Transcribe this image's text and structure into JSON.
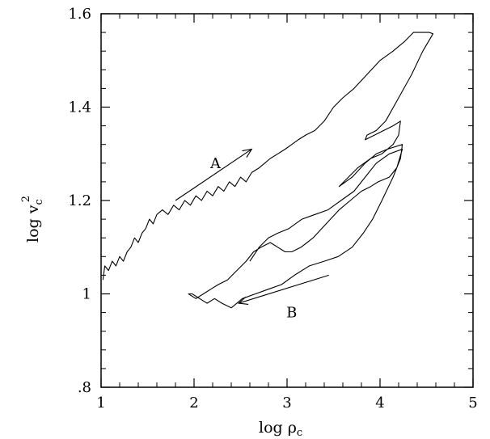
{
  "chart_data": {
    "type": "line",
    "title": "",
    "xlabel": "log ρ",
    "xlabel_sub": "c",
    "ylabel": "log v",
    "ylabel_sub": "c",
    "ylabel_sup": "2",
    "xlim": [
      1,
      5
    ],
    "ylim": [
      0.8,
      1.6
    ],
    "x_ticks": [
      1,
      2,
      3,
      4,
      5
    ],
    "x_tick_labels": [
      "1",
      "2",
      "3",
      "4",
      "5"
    ],
    "y_ticks": [
      0.8,
      1.0,
      1.2,
      1.4,
      1.6
    ],
    "y_tick_labels": [
      ".8",
      "1",
      "1.2",
      "1.4",
      "1.6"
    ],
    "x_minor_step": 0.2,
    "y_minor_step": 0.04,
    "grid": false,
    "line_color": "#000000",
    "series": [
      {
        "values": [
          [
            1.02,
            1.03
          ],
          [
            1.04,
            1.06
          ],
          [
            1.08,
            1.05
          ],
          [
            1.12,
            1.07
          ],
          [
            1.16,
            1.06
          ],
          [
            1.2,
            1.08
          ],
          [
            1.24,
            1.07
          ],
          [
            1.28,
            1.09
          ],
          [
            1.32,
            1.1
          ],
          [
            1.36,
            1.12
          ],
          [
            1.4,
            1.11
          ],
          [
            1.44,
            1.13
          ],
          [
            1.48,
            1.14
          ],
          [
            1.52,
            1.16
          ],
          [
            1.56,
            1.15
          ],
          [
            1.6,
            1.17
          ],
          [
            1.66,
            1.18
          ],
          [
            1.72,
            1.17
          ],
          [
            1.78,
            1.19
          ],
          [
            1.84,
            1.18
          ],
          [
            1.9,
            1.2
          ],
          [
            1.96,
            1.19
          ],
          [
            2.02,
            1.21
          ],
          [
            2.08,
            1.2
          ],
          [
            2.14,
            1.22
          ],
          [
            2.2,
            1.21
          ],
          [
            2.26,
            1.23
          ],
          [
            2.32,
            1.22
          ],
          [
            2.38,
            1.24
          ],
          [
            2.44,
            1.23
          ],
          [
            2.5,
            1.25
          ],
          [
            2.56,
            1.24
          ],
          [
            2.62,
            1.26
          ],
          [
            2.7,
            1.27
          ],
          [
            2.76,
            1.28
          ],
          [
            2.82,
            1.29
          ],
          [
            2.9,
            1.3
          ],
          [
            2.98,
            1.31
          ],
          [
            3.05,
            1.32
          ],
          [
            3.12,
            1.33
          ],
          [
            3.2,
            1.34
          ],
          [
            3.3,
            1.35
          ],
          [
            3.4,
            1.37
          ],
          [
            3.5,
            1.4
          ],
          [
            3.6,
            1.42
          ],
          [
            3.72,
            1.44
          ],
          [
            3.86,
            1.47
          ],
          [
            4.0,
            1.5
          ],
          [
            4.14,
            1.52
          ],
          [
            4.26,
            1.54
          ],
          [
            4.36,
            1.56
          ],
          [
            4.44,
            1.56
          ],
          [
            4.53,
            1.56
          ],
          [
            4.57,
            1.557
          ],
          [
            4.46,
            1.52
          ],
          [
            4.34,
            1.47
          ],
          [
            4.2,
            1.42
          ],
          [
            4.06,
            1.37
          ],
          [
            3.96,
            1.35
          ],
          [
            3.86,
            1.34
          ],
          [
            3.84,
            1.33
          ],
          [
            3.94,
            1.34
          ],
          [
            4.04,
            1.35
          ],
          [
            4.14,
            1.36
          ],
          [
            4.22,
            1.37
          ],
          [
            4.2,
            1.34
          ],
          [
            4.14,
            1.32
          ],
          [
            4.02,
            1.3
          ],
          [
            3.9,
            1.29
          ],
          [
            3.76,
            1.27
          ],
          [
            3.66,
            1.25
          ],
          [
            3.56,
            1.23
          ],
          [
            3.7,
            1.25
          ],
          [
            3.84,
            1.28
          ],
          [
            3.96,
            1.3
          ],
          [
            4.08,
            1.31
          ],
          [
            4.24,
            1.32
          ],
          [
            4.22,
            1.29
          ],
          [
            4.14,
            1.25
          ],
          [
            4.02,
            1.2
          ],
          [
            3.92,
            1.16
          ],
          [
            3.82,
            1.13
          ],
          [
            3.7,
            1.1
          ],
          [
            3.55,
            1.08
          ],
          [
            3.4,
            1.07
          ],
          [
            3.24,
            1.06
          ],
          [
            3.08,
            1.04
          ],
          [
            2.94,
            1.02
          ],
          [
            2.8,
            1.01
          ],
          [
            2.66,
            1.0
          ],
          [
            2.52,
            0.99
          ],
          [
            2.4,
            0.97
          ],
          [
            2.3,
            0.98
          ],
          [
            2.22,
            0.99
          ],
          [
            2.14,
            0.98
          ],
          [
            2.06,
            0.99
          ],
          [
            1.98,
            1.0
          ],
          [
            1.94,
            1.0
          ],
          [
            2.02,
            0.99
          ],
          [
            2.1,
            1.0
          ],
          [
            2.18,
            1.01
          ],
          [
            2.26,
            1.02
          ],
          [
            2.36,
            1.03
          ],
          [
            2.46,
            1.05
          ],
          [
            2.56,
            1.07
          ],
          [
            2.64,
            1.09
          ],
          [
            2.72,
            1.1
          ],
          [
            2.82,
            1.11
          ],
          [
            2.9,
            1.1
          ],
          [
            2.98,
            1.09
          ],
          [
            3.05,
            1.09
          ],
          [
            3.15,
            1.1
          ],
          [
            3.28,
            1.12
          ],
          [
            3.42,
            1.15
          ],
          [
            3.56,
            1.18
          ],
          [
            3.68,
            1.2
          ],
          [
            3.8,
            1.22
          ],
          [
            3.9,
            1.23
          ],
          [
            3.98,
            1.24
          ],
          [
            4.1,
            1.25
          ],
          [
            4.18,
            1.27
          ],
          [
            4.24,
            1.31
          ],
          [
            4.1,
            1.3
          ],
          [
            3.96,
            1.28
          ],
          [
            3.84,
            1.25
          ],
          [
            3.72,
            1.22
          ],
          [
            3.58,
            1.2
          ],
          [
            3.44,
            1.18
          ],
          [
            3.3,
            1.17
          ],
          [
            3.16,
            1.16
          ],
          [
            3.02,
            1.14
          ],
          [
            2.9,
            1.13
          ],
          [
            2.8,
            1.12
          ],
          [
            2.7,
            1.1
          ],
          [
            2.6,
            1.07
          ]
        ]
      }
    ],
    "annotations": [
      {
        "text": "A",
        "x": 2.23,
        "y": 1.28,
        "arrow_from": [
          1.8,
          1.2
        ],
        "arrow_to": [
          2.62,
          1.31
        ]
      },
      {
        "text": "B",
        "x": 3.05,
        "y": 0.96,
        "arrow_from": [
          3.45,
          1.04
        ],
        "arrow_to": [
          2.48,
          0.98
        ]
      }
    ]
  }
}
